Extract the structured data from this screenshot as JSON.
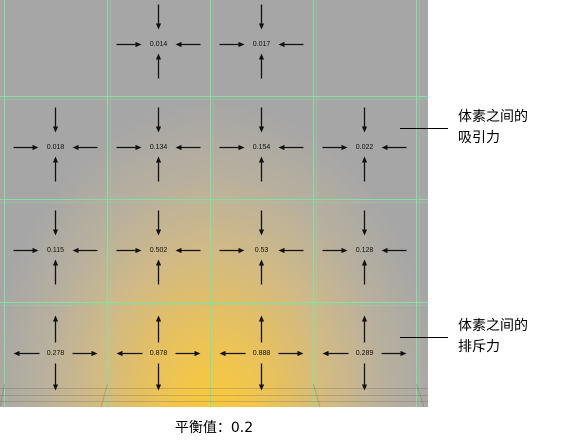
{
  "voxel_grid": {
    "rows": [
      [
        null,
        {
          "value": 0.014,
          "arrow_icon": "arrows-inward-icon"
        },
        {
          "value": 0.017,
          "arrow_icon": "arrows-inward-icon"
        },
        null
      ],
      [
        {
          "value": 0.018,
          "arrow_icon": "arrows-inward-icon"
        },
        {
          "value": 0.134,
          "arrow_icon": "arrows-inward-icon"
        },
        {
          "value": 0.154,
          "arrow_icon": "arrows-inward-icon"
        },
        {
          "value": 0.022,
          "arrow_icon": "arrows-inward-icon"
        }
      ],
      [
        {
          "value": 0.115,
          "arrow_icon": "arrows-inward-icon"
        },
        {
          "value": 0.502,
          "arrow_icon": "arrows-inward-icon"
        },
        {
          "value": 0.53,
          "arrow_icon": "arrows-inward-icon"
        },
        {
          "value": 0.128,
          "arrow_icon": "arrows-inward-icon"
        }
      ],
      [
        {
          "value": 0.278,
          "arrow_icon": "arrows-outward-icon"
        },
        {
          "value": 0.878,
          "arrow_icon": "arrows-outward-icon"
        },
        {
          "value": 0.888,
          "arrow_icon": "arrows-outward-icon"
        },
        {
          "value": 0.289,
          "arrow_icon": "arrows-outward-icon"
        }
      ]
    ]
  },
  "annotations": {
    "attraction": {
      "line1": "体素之间的",
      "line2": "吸引力"
    },
    "repulsion": {
      "line1": "体素之间的",
      "line2": "排斥力"
    }
  },
  "caption": {
    "label": "平衡值：",
    "value": "0.2"
  },
  "colors": {
    "background": "#a6a6a6",
    "glow": "#f8c93a",
    "grid_line": "#86e0a4",
    "arrow": "#111111"
  }
}
